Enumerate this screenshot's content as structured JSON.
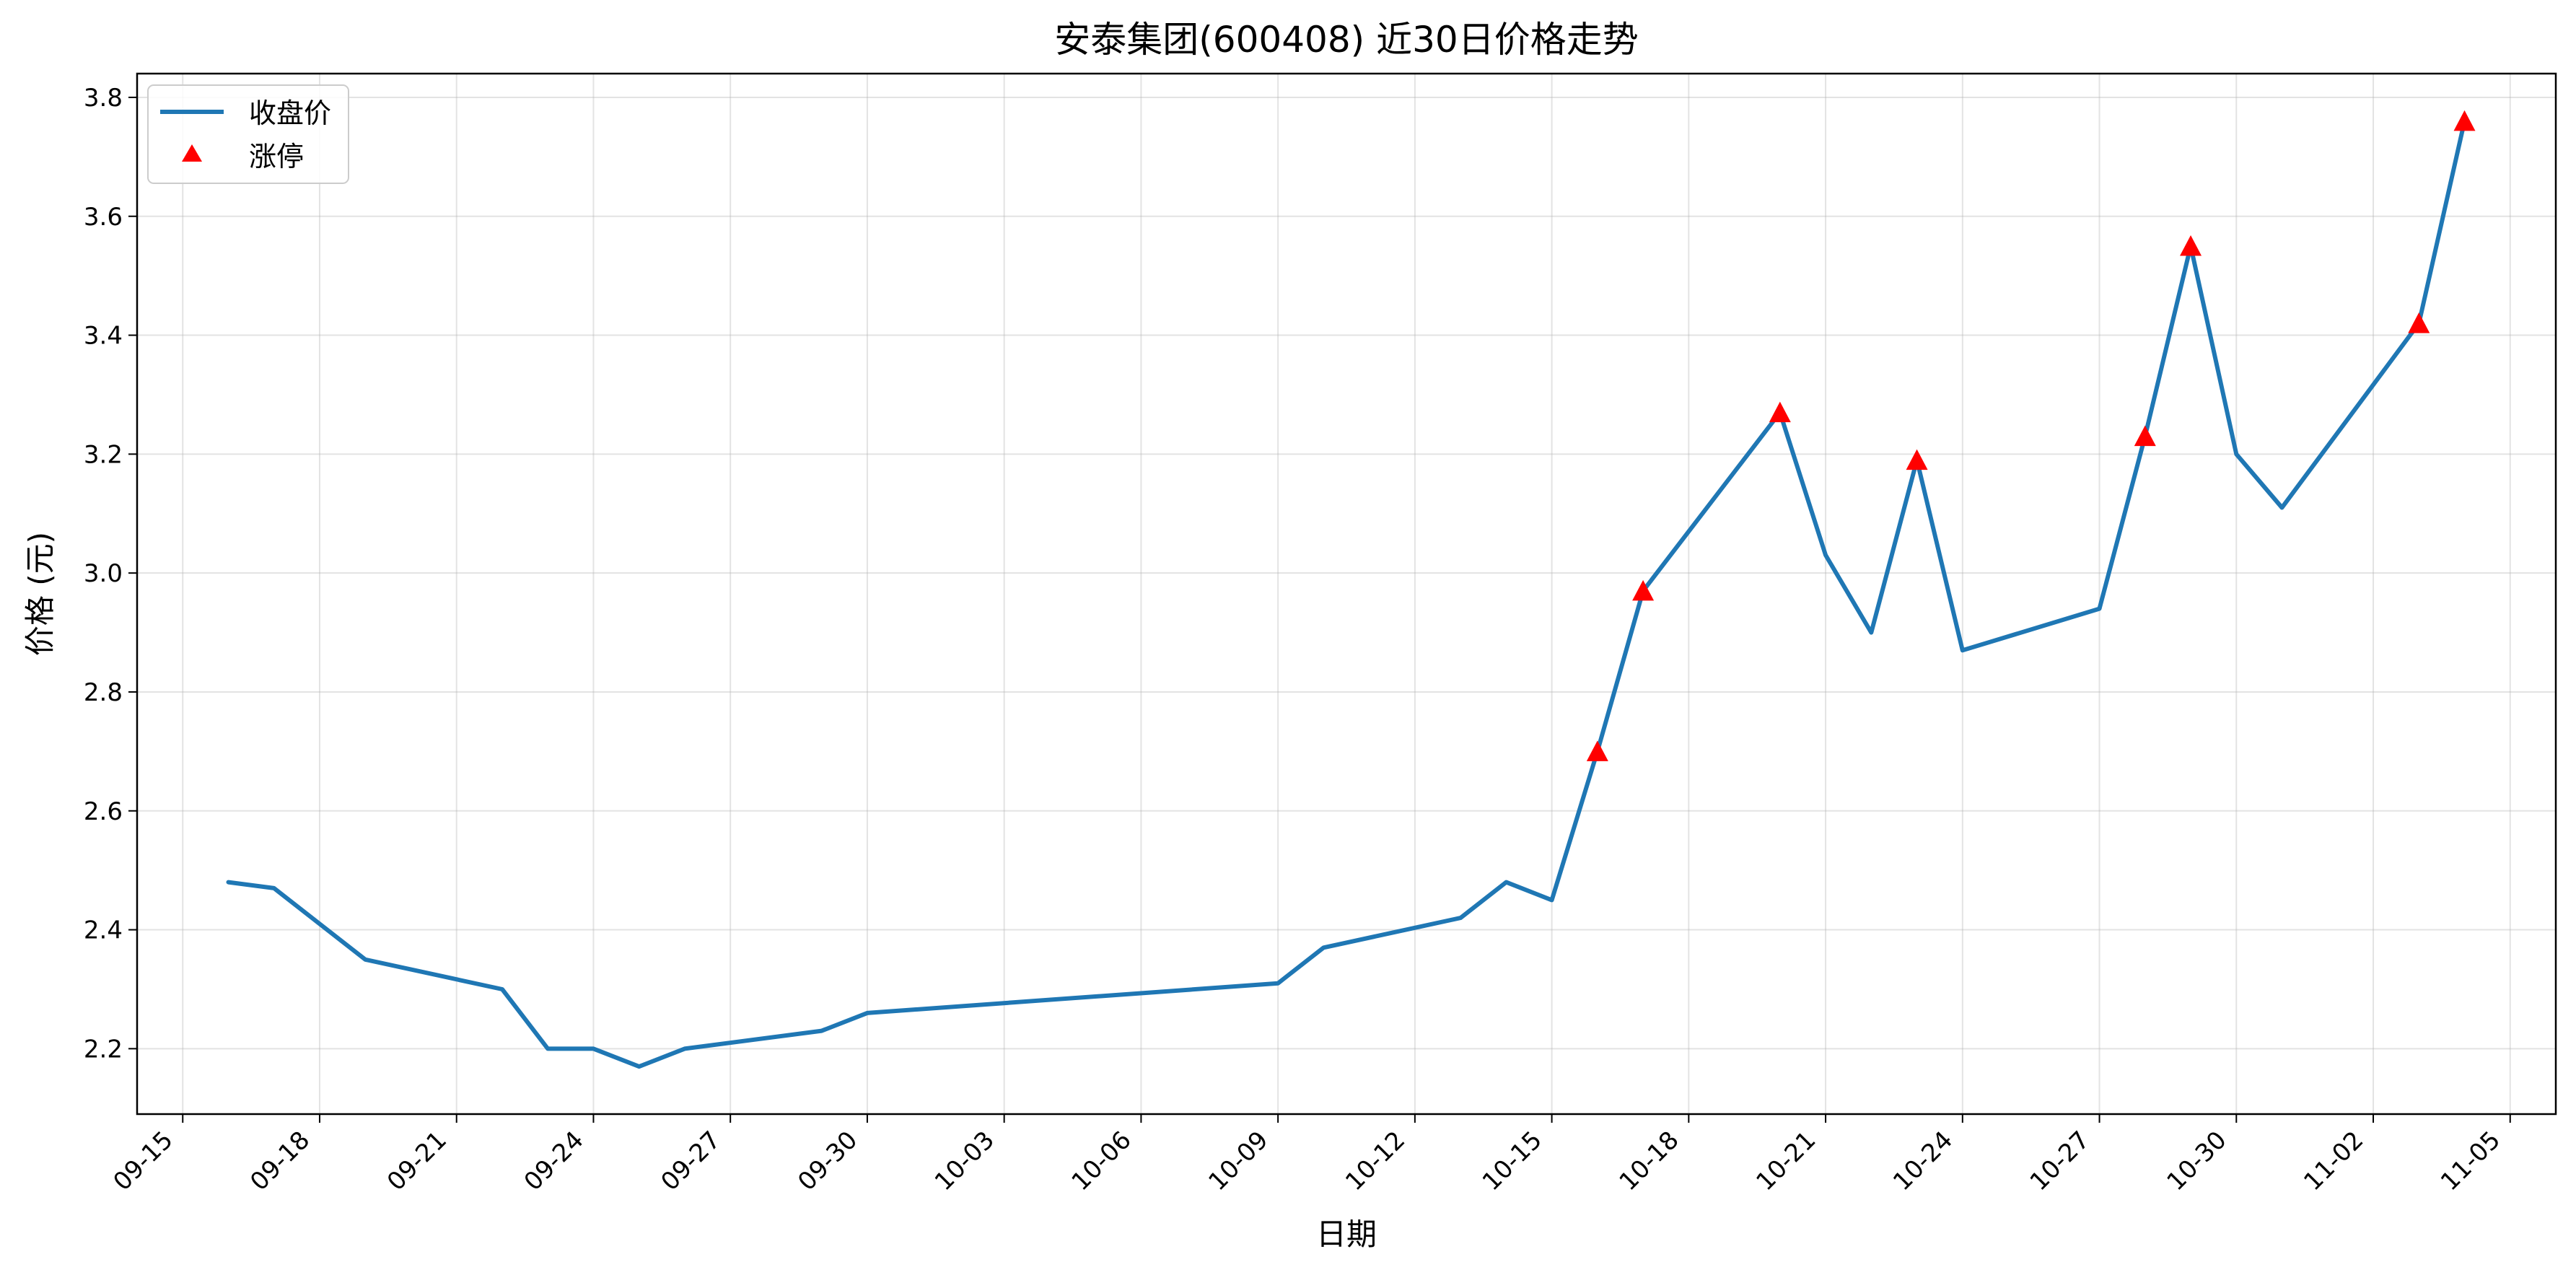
{
  "chart_data": {
    "type": "line",
    "title": "安泰集团(600408) 近30日价格走势",
    "xlabel": "日期",
    "ylabel": "价格 (元)",
    "ylim": [
      2.09,
      3.84
    ],
    "xlim": [
      "09-14",
      "11-06"
    ],
    "grid": true,
    "legend_position": "top-left",
    "x_tick_labels": [
      "09-15",
      "09-18",
      "09-21",
      "09-24",
      "09-27",
      "09-30",
      "10-03",
      "10-06",
      "10-09",
      "10-12",
      "10-15",
      "10-18",
      "10-21",
      "10-24",
      "10-27",
      "10-30",
      "11-02",
      "11-05"
    ],
    "y_tick_labels": [
      "2.2",
      "2.4",
      "2.6",
      "2.8",
      "3.0",
      "3.2",
      "3.4",
      "3.6",
      "3.8"
    ],
    "series": [
      {
        "name": "收盘价",
        "type": "line",
        "color": "#1f77b4",
        "points": [
          {
            "x": "09-16",
            "y": 2.48
          },
          {
            "x": "09-17",
            "y": 2.47
          },
          {
            "x": "09-19",
            "y": 2.35
          },
          {
            "x": "09-22",
            "y": 2.3
          },
          {
            "x": "09-23",
            "y": 2.2
          },
          {
            "x": "09-24",
            "y": 2.2
          },
          {
            "x": "09-25",
            "y": 2.17
          },
          {
            "x": "09-26",
            "y": 2.2
          },
          {
            "x": "09-29",
            "y": 2.23
          },
          {
            "x": "09-30",
            "y": 2.26
          },
          {
            "x": "10-09",
            "y": 2.31
          },
          {
            "x": "10-10",
            "y": 2.37
          },
          {
            "x": "10-13",
            "y": 2.42
          },
          {
            "x": "10-14",
            "y": 2.48
          },
          {
            "x": "10-15",
            "y": 2.45
          },
          {
            "x": "10-16",
            "y": 2.7
          },
          {
            "x": "10-17",
            "y": 2.97
          },
          {
            "x": "10-20",
            "y": 3.27
          },
          {
            "x": "10-21",
            "y": 3.03
          },
          {
            "x": "10-22",
            "y": 2.9
          },
          {
            "x": "10-23",
            "y": 3.19
          },
          {
            "x": "10-24",
            "y": 2.87
          },
          {
            "x": "10-27",
            "y": 2.94
          },
          {
            "x": "10-28",
            "y": 3.23
          },
          {
            "x": "10-29",
            "y": 3.55
          },
          {
            "x": "10-30",
            "y": 3.2
          },
          {
            "x": "10-31",
            "y": 3.11
          },
          {
            "x": "11-03",
            "y": 3.42
          },
          {
            "x": "11-04",
            "y": 3.76
          }
        ]
      },
      {
        "name": "涨停",
        "type": "scatter",
        "marker": "triangle",
        "color": "#ff0000",
        "points": [
          {
            "x": "10-16",
            "y": 2.7
          },
          {
            "x": "10-17",
            "y": 2.97
          },
          {
            "x": "10-20",
            "y": 3.27
          },
          {
            "x": "10-23",
            "y": 3.19
          },
          {
            "x": "10-28",
            "y": 3.23
          },
          {
            "x": "10-29",
            "y": 3.55
          },
          {
            "x": "11-03",
            "y": 3.42
          },
          {
            "x": "11-04",
            "y": 3.76
          }
        ]
      }
    ]
  }
}
